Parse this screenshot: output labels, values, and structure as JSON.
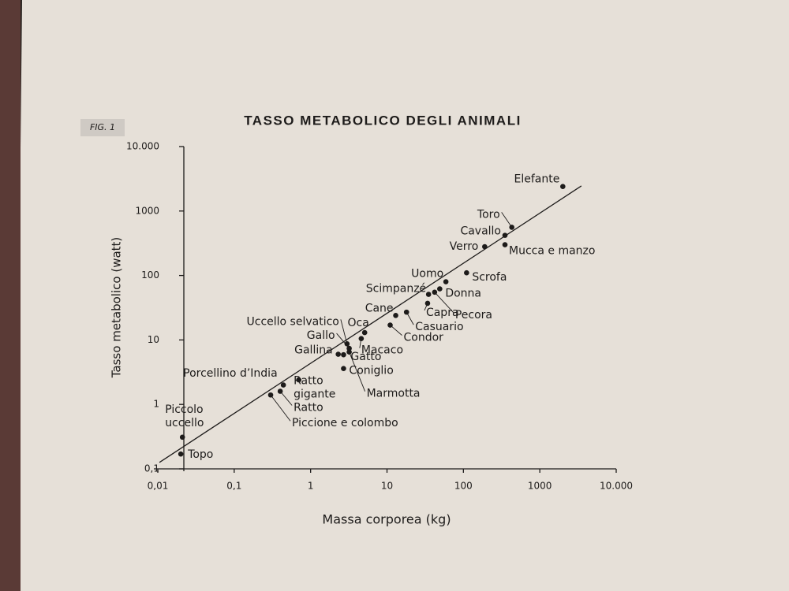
{
  "figure_tag": "FIG. 1",
  "chart_data": {
    "type": "scatter",
    "title": "TASSO METABOLICO DEGLI ANIMALI",
    "xlabel": "Massa corporea (kg)",
    "ylabel": "Tasso metabolico (watt)",
    "log_x": true,
    "log_y": true,
    "xlim": [
      0.01,
      10000
    ],
    "ylim": [
      0.1,
      10000
    ],
    "xticks": [
      {
        "value": 0.01,
        "label": "0,01"
      },
      {
        "value": 0.1,
        "label": "0,1"
      },
      1,
      10,
      100,
      1000,
      {
        "value": 10000,
        "label": "10.000"
      }
    ],
    "yticks": [
      {
        "value": 0.1,
        "label": "0,1"
      },
      1,
      10,
      100,
      1000,
      {
        "value": 10000,
        "label": "10.000"
      }
    ],
    "color": "#1d1b1a",
    "labels": [
      "Elefante",
      "Toro",
      "Cavallo",
      "Verro",
      "Mucca e manzo",
      "Scrofa",
      "Uomo",
      "Donna",
      "Scimpanzé",
      "Capra",
      "Pecora",
      "Casuario",
      "Condor",
      "Cane",
      "Oca",
      "Uccello selvatico",
      "Gallo",
      "Macaco",
      "Gallina",
      "Gatto",
      "Marmotta",
      "Coniglio",
      "Porcellino d’India",
      "Ratto gigante",
      "Ratto",
      "Piccione e colombo",
      "Piccolo uccello",
      "Topo"
    ],
    "x": [
      2000,
      430,
      350,
      190,
      350,
      110,
      59,
      49,
      35,
      34,
      42,
      18,
      11,
      13,
      5.1,
      3,
      3.2,
      4.6,
      2.3,
      2.7,
      3.2,
      2.7,
      0.7,
      0.44,
      0.4,
      0.3,
      0.021,
      0.02
    ],
    "values": [
      2400,
      560,
      420,
      280,
      300,
      110,
      80,
      62,
      51,
      37,
      55,
      27,
      17,
      24,
      13,
      8.7,
      7.4,
      10.5,
      6,
      5.9,
      6.5,
      3.6,
      2.4,
      2,
      1.6,
      1.4,
      0.31,
      0.17
    ],
    "trend_line": {
      "x": [
        0.0105,
        3500
      ],
      "y": [
        0.126,
        2450
      ]
    }
  }
}
